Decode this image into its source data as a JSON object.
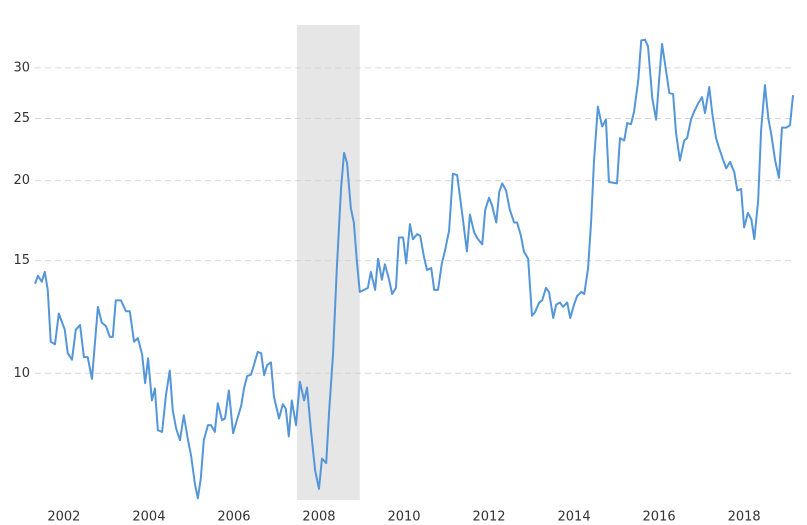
{
  "chart_data": {
    "type": "line",
    "log_y": true,
    "grid": true,
    "grid_style": "dashed",
    "shaded_regions": [
      [
        2007.48,
        2008.96
      ]
    ],
    "shade_color": "#e6e6e6",
    "xlim": [
      2001.32,
      2019.15
    ],
    "xticks": [
      2002,
      2004,
      2006,
      2008,
      2010,
      2012,
      2014,
      2016,
      2018
    ],
    "ylim": [
      6.34,
      35
    ],
    "yticks": [
      10,
      15,
      20,
      25,
      30
    ],
    "x": [
      2001.32,
      2001.39,
      2001.48,
      2001.55,
      2001.62,
      2001.69,
      2001.79,
      2001.88,
      2002.02,
      2002.09,
      2002.19,
      2002.28,
      2002.38,
      2002.47,
      2002.56,
      2002.66,
      2002.8,
      2002.89,
      2002.99,
      2003.08,
      2003.15,
      2003.22,
      2003.34,
      2003.46,
      2003.55,
      2003.65,
      2003.74,
      2003.84,
      2003.91,
      2003.98,
      2004.07,
      2004.14,
      2004.21,
      2004.31,
      2004.4,
      2004.49,
      2004.56,
      2004.64,
      2004.73,
      2004.82,
      2004.92,
      2004.99,
      2005.08,
      2005.15,
      2005.22,
      2005.29,
      2005.39,
      2005.46,
      2005.55,
      2005.62,
      2005.72,
      2005.79,
      2005.88,
      2005.98,
      2006.07,
      2006.17,
      2006.24,
      2006.31,
      2006.4,
      2006.47,
      2006.56,
      2006.64,
      2006.71,
      2006.78,
      2006.87,
      2006.94,
      2007.06,
      2007.15,
      2007.22,
      2007.29,
      2007.36,
      2007.46,
      2007.55,
      2007.65,
      2007.72,
      2007.81,
      2007.91,
      2008.0,
      2008.07,
      2008.17,
      2008.24,
      2008.33,
      2008.42,
      2008.52,
      2008.59,
      2008.66,
      2008.75,
      2008.82,
      2008.89,
      2008.96,
      2009.06,
      2009.15,
      2009.22,
      2009.32,
      2009.39,
      2009.48,
      2009.55,
      2009.65,
      2009.72,
      2009.81,
      2009.88,
      2009.98,
      2010.05,
      2010.14,
      2010.21,
      2010.31,
      2010.38,
      2010.47,
      2010.54,
      2010.64,
      2010.71,
      2010.8,
      2010.89,
      2010.96,
      2011.06,
      2011.15,
      2011.25,
      2011.32,
      2011.39,
      2011.48,
      2011.55,
      2011.65,
      2011.74,
      2011.84,
      2011.91,
      2012.0,
      2012.07,
      2012.17,
      2012.24,
      2012.31,
      2012.4,
      2012.49,
      2012.59,
      2012.66,
      2012.75,
      2012.82,
      2012.92,
      2013.01,
      2013.08,
      2013.18,
      2013.25,
      2013.34,
      2013.41,
      2013.51,
      2013.58,
      2013.67,
      2013.74,
      2013.84,
      2013.91,
      2014.0,
      2014.07,
      2014.17,
      2014.24,
      2014.33,
      2014.4,
      2014.47,
      2014.56,
      2014.66,
      2014.75,
      2014.82,
      2015.01,
      2015.08,
      2015.18,
      2015.25,
      2015.34,
      2015.41,
      2015.51,
      2015.58,
      2015.67,
      2015.74,
      2015.84,
      2015.93,
      2016.0,
      2016.07,
      2016.17,
      2016.24,
      2016.33,
      2016.4,
      2016.49,
      2016.59,
      2016.66,
      2016.75,
      2016.82,
      2016.92,
      2017.01,
      2017.08,
      2017.18,
      2017.25,
      2017.34,
      2017.41,
      2017.51,
      2017.58,
      2017.67,
      2017.77,
      2017.84,
      2017.93,
      2018.0,
      2018.09,
      2018.17,
      2018.24,
      2018.33,
      2018.4,
      2018.49,
      2018.57,
      2018.64,
      2018.73,
      2018.82,
      2018.89,
      2018.99,
      2019.08,
      2019.15
    ],
    "series": [
      {
        "color": "#5596d8",
        "values": [
          13.8,
          14.2,
          13.9,
          14.4,
          13.5,
          11.2,
          11.1,
          12.4,
          11.7,
          10.75,
          10.5,
          11.7,
          11.9,
          10.6,
          10.6,
          9.8,
          12.7,
          12.0,
          11.85,
          11.4,
          11.4,
          13.0,
          13.0,
          12.5,
          12.5,
          11.2,
          11.35,
          10.7,
          9.65,
          10.55,
          9.07,
          9.47,
          8.15,
          8.1,
          9.24,
          10.1,
          8.75,
          8.2,
          7.86,
          8.6,
          7.86,
          7.45,
          6.73,
          6.38,
          6.85,
          7.86,
          8.3,
          8.3,
          8.1,
          8.98,
          8.45,
          8.5,
          9.4,
          8.06,
          8.45,
          8.9,
          9.5,
          9.9,
          9.95,
          10.3,
          10.8,
          10.75,
          9.93,
          10.3,
          10.4,
          9.2,
          8.5,
          8.95,
          8.8,
          7.97,
          9.07,
          8.3,
          9.7,
          9.07,
          9.5,
          8.15,
          7.05,
          6.6,
          7.36,
          7.24,
          8.75,
          10.7,
          14.6,
          19.5,
          22.1,
          21.3,
          18.1,
          17.2,
          15.0,
          13.4,
          13.5,
          13.6,
          14.4,
          13.5,
          15.1,
          14.0,
          14.8,
          14.0,
          13.3,
          13.6,
          16.3,
          16.3,
          14.85,
          17.1,
          16.2,
          16.5,
          16.4,
          15.2,
          14.5,
          14.6,
          13.5,
          13.5,
          14.85,
          15.5,
          16.7,
          20.5,
          20.4,
          18.8,
          17.3,
          15.5,
          17.7,
          16.6,
          16.2,
          15.9,
          18.0,
          18.8,
          18.3,
          17.2,
          19.2,
          19.8,
          19.3,
          18.0,
          17.2,
          17.2,
          16.4,
          15.5,
          15.1,
          12.3,
          12.45,
          12.9,
          13.0,
          13.6,
          13.4,
          12.2,
          12.8,
          12.9,
          12.7,
          12.9,
          12.2,
          12.8,
          13.2,
          13.4,
          13.3,
          14.6,
          17.2,
          21.5,
          26.1,
          24.3,
          24.9,
          19.9,
          19.8,
          23.3,
          23.1,
          24.6,
          24.5,
          25.6,
          28.7,
          33.1,
          33.2,
          32.4,
          26.9,
          24.9,
          28.7,
          32.7,
          29.5,
          27.4,
          27.3,
          23.7,
          21.5,
          23.1,
          23.3,
          24.9,
          25.6,
          26.4,
          27.0,
          25.5,
          28.0,
          25.5,
          23.3,
          22.5,
          21.5,
          20.9,
          21.4,
          20.6,
          19.3,
          19.4,
          16.9,
          17.8,
          17.4,
          16.2,
          18.6,
          24.0,
          28.2,
          25.0,
          23.6,
          21.5,
          20.2,
          24.2,
          24.2,
          24.4,
          27.2
        ]
      }
    ]
  }
}
